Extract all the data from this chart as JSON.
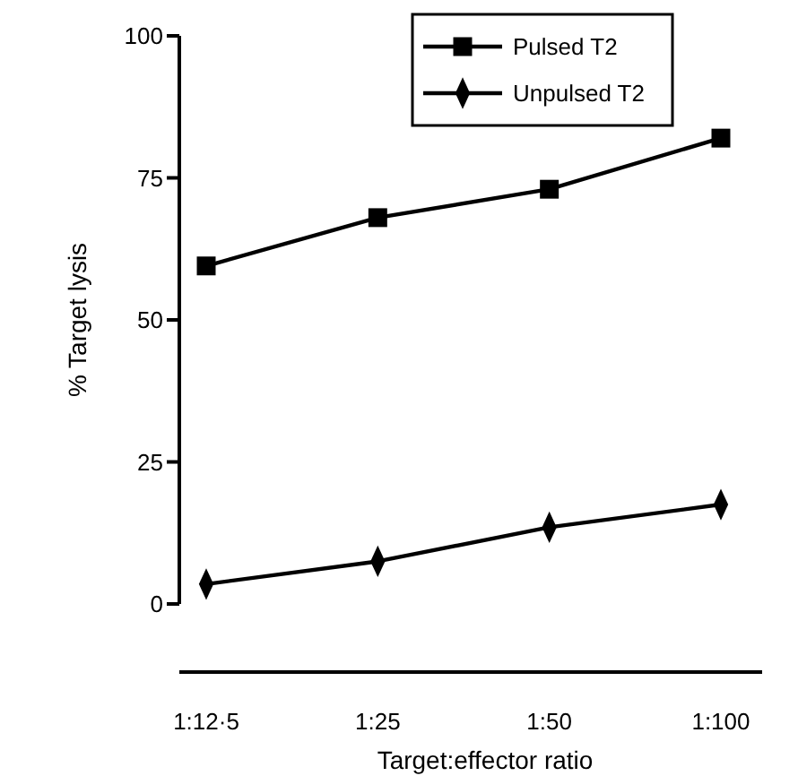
{
  "chart_data": {
    "type": "line",
    "xlabel": "Target:effector ratio",
    "ylabel": "% Target lysis",
    "categories": [
      "1:12·5",
      "1:25",
      "1:50",
      "1:100"
    ],
    "series": [
      {
        "name": "Pulsed T2",
        "color": "#000000",
        "marker": "square",
        "values": [
          59.5,
          68,
          73,
          82
        ]
      },
      {
        "name": "Unpulsed T2",
        "color": "#000000",
        "marker": "diamond",
        "values": [
          3.5,
          7.5,
          13.5,
          17.5
        ]
      }
    ],
    "ylim": [
      0,
      100
    ],
    "yticks": [
      0,
      25,
      50,
      75,
      100
    ],
    "grid": false,
    "legend": "top right",
    "line_style": "solid"
  }
}
